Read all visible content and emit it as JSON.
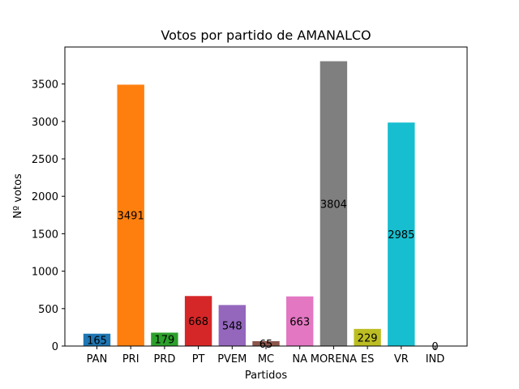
{
  "chart_data": {
    "type": "bar",
    "title": "Votos por partido de AMANALCO",
    "xlabel": "Partidos",
    "ylabel": "Nº votos",
    "categories": [
      "PAN",
      "PRI",
      "PRD",
      "PT",
      "PVEM",
      "MC",
      "NA",
      "MORENA",
      "ES",
      "VR",
      "IND"
    ],
    "values": [
      165,
      3491,
      179,
      668,
      548,
      65,
      663,
      3804,
      229,
      2985,
      0
    ],
    "colors": [
      "#1f77b4",
      "#ff7f0e",
      "#2ca02c",
      "#d62728",
      "#9467bd",
      "#8c564b",
      "#e377c2",
      "#7f7f7f",
      "#bcbd22",
      "#17becf",
      "#1f77b4"
    ],
    "ylim": [
      0,
      3994
    ],
    "yticks": [
      0,
      500,
      1000,
      1500,
      2000,
      2500,
      3000,
      3500
    ],
    "grid": false,
    "legend": false
  }
}
